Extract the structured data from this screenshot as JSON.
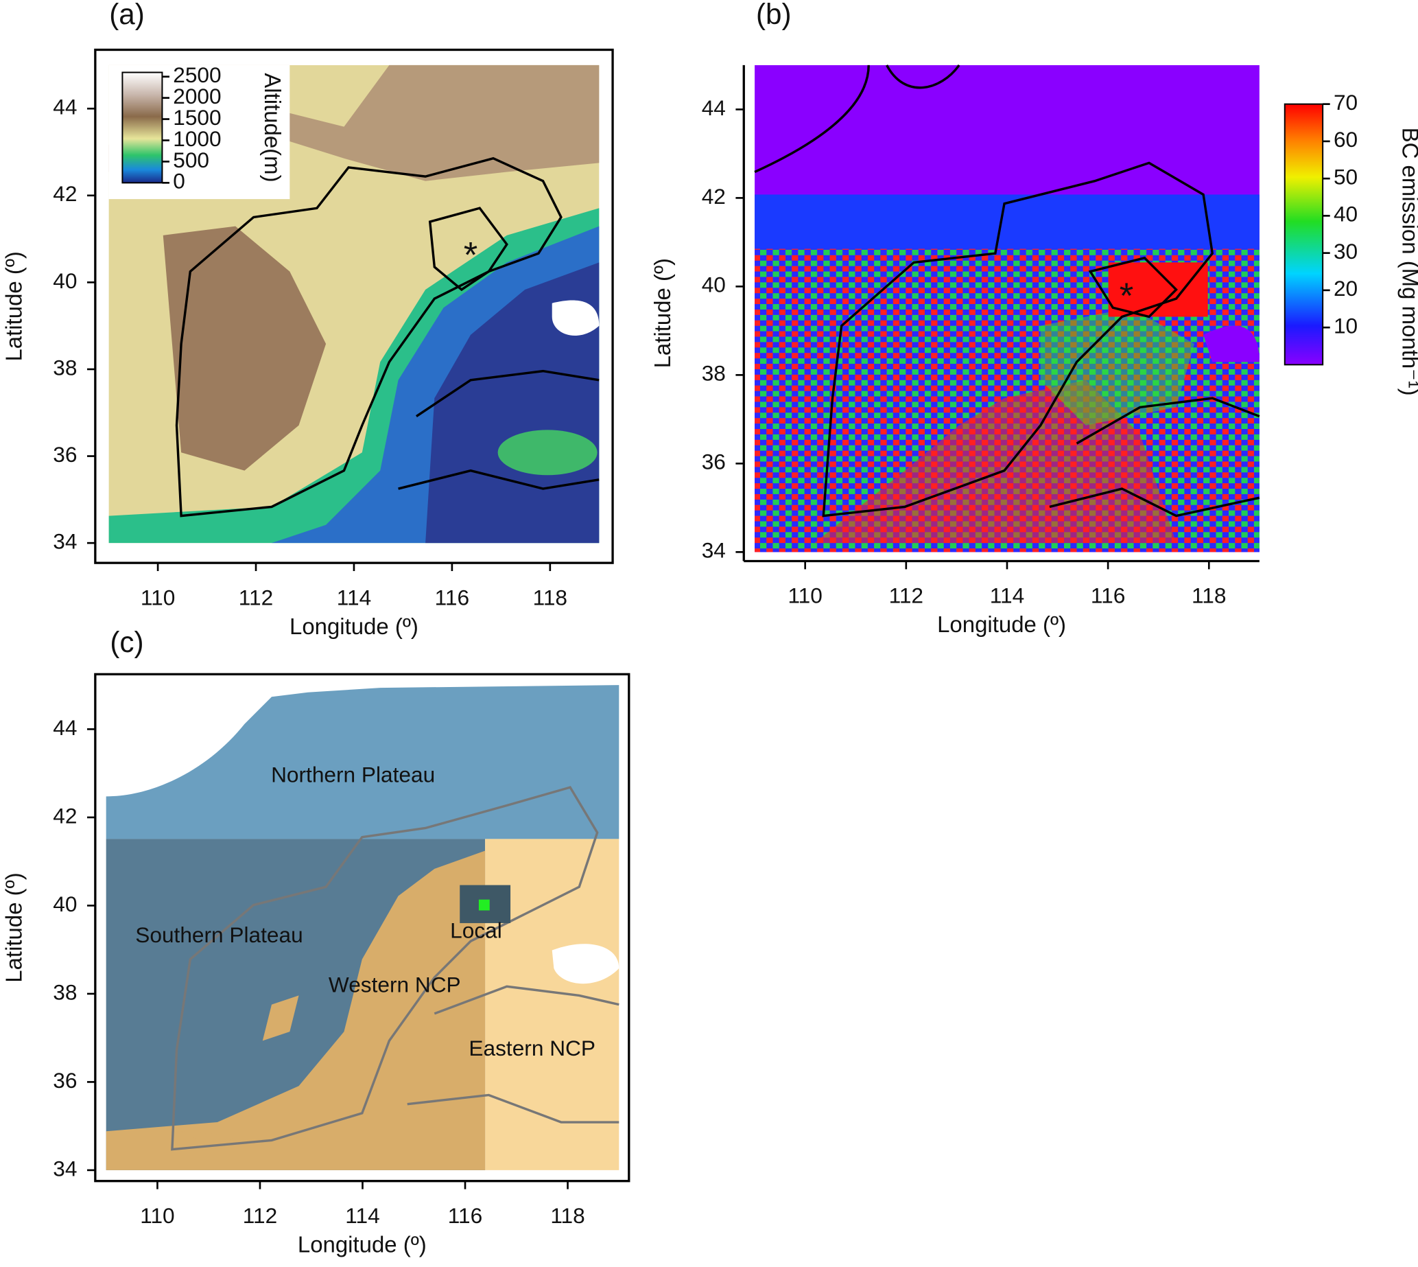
{
  "panels": [
    {
      "label": "(a)",
      "xlabel": "Longitude (º)",
      "ylabel": "Latitude (º)",
      "xlim": [
        109,
        119
      ],
      "ylim": [
        34,
        45
      ],
      "xticks": [
        110,
        112,
        114,
        116,
        118
      ],
      "yticks": [
        34,
        36,
        38,
        40,
        42,
        44
      ],
      "legend": {
        "title": "Altitude(m)",
        "lim": [
          0,
          2600
        ],
        "ticks": [
          0,
          500,
          1000,
          1500,
          2000,
          2500
        ]
      }
    },
    {
      "label": "(b)",
      "xlabel": "Longitude (º)",
      "ylabel": "Latitude (º)",
      "xlim": [
        109,
        119
      ],
      "ylim": [
        34,
        45
      ],
      "xticks": [
        110,
        112,
        114,
        116,
        118
      ],
      "yticks": [
        34,
        36,
        38,
        40,
        42,
        44
      ],
      "colorbar": {
        "title": "BC emission (Mg month⁻¹)",
        "lim": [
          0,
          70
        ],
        "ticks": [
          10,
          20,
          30,
          40,
          50,
          60,
          70
        ]
      }
    },
    {
      "label": "(c)",
      "xlabel": "Longitude (º)",
      "ylabel": "Latitude (º)",
      "xlim": [
        109,
        119
      ],
      "ylim": [
        34,
        45
      ],
      "xticks": [
        110,
        112,
        114,
        116,
        118
      ],
      "yticks": [
        34,
        36,
        38,
        40,
        42,
        44
      ],
      "regions": [
        "Northern Plateau",
        "Southern Plateau",
        "Western NCP",
        "Eastern NCP",
        "Local"
      ]
    }
  ]
}
